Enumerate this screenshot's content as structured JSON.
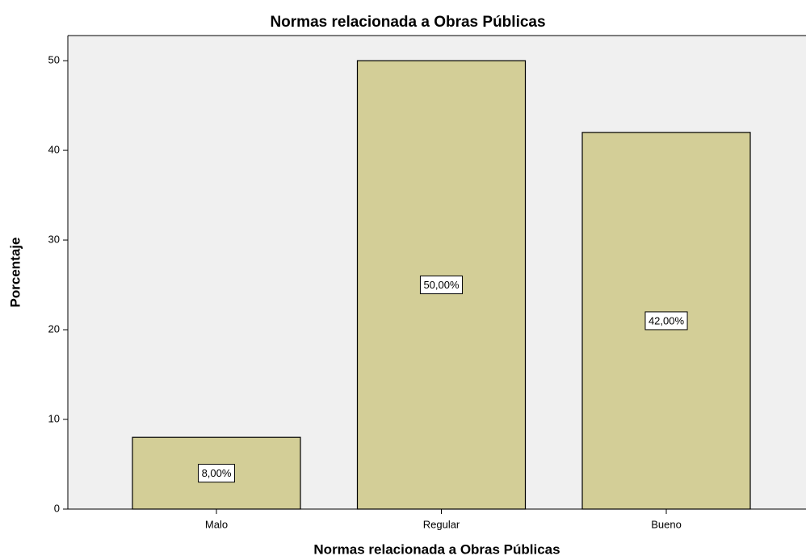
{
  "chart_data": {
    "type": "bar",
    "title": "Normas relacionada a Obras Públicas",
    "x_label": "Normas relacionada a Obras Públicas",
    "y_label": "Porcentaje",
    "categories": [
      "Malo",
      "Regular",
      "Bueno"
    ],
    "values": [
      8,
      50,
      42
    ],
    "value_labels": [
      "8,00%",
      "50,00%",
      "42,00%"
    ],
    "color": "#d3ce97",
    "ylim": [
      0,
      52.8
    ],
    "yticks": [
      0,
      10,
      20,
      30,
      40,
      50
    ],
    "grid": false
  }
}
